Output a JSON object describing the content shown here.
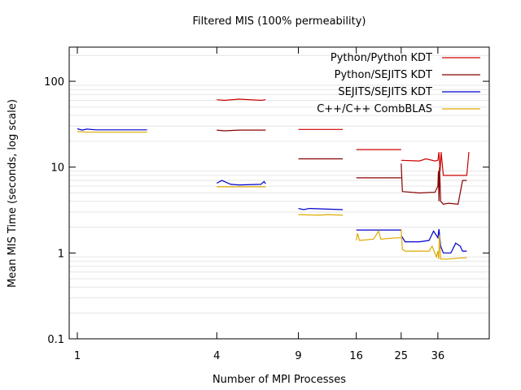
{
  "chart_data": {
    "type": "line",
    "title": "Filtered MIS (100% permeability)",
    "xlabel": "Number of MPI Processes",
    "ylabel": "Mean MIS Time (seconds, log scale)",
    "yscale": "log",
    "ylim": [
      0.1,
      250
    ],
    "x_ticks": [
      "1",
      "4",
      "9",
      "16",
      "25",
      "36"
    ],
    "y_ticks": [
      "0.1",
      "1",
      "10",
      "100"
    ],
    "grid": "horizontal minor",
    "legend_position": "top-right",
    "series": [
      {
        "name": "Python/Python KDT",
        "color": "#cc0000",
        "segments": [
          [
            [
              4,
              61
            ],
            [
              4.3,
              60
            ],
            [
              5,
              62
            ],
            [
              6.2,
              60
            ],
            [
              6.5,
              61
            ]
          ],
          [
            [
              9,
              27.5
            ],
            [
              14,
              27.5
            ]
          ],
          [
            [
              16,
              16
            ],
            [
              25,
              16
            ]
          ],
          [
            [
              25,
              12
            ],
            [
              30,
              11.8
            ],
            [
              32,
              12.5
            ],
            [
              35,
              11.8
            ],
            [
              36,
              12
            ],
            [
              36.4,
              15
            ],
            [
              36.8,
              9
            ],
            [
              37.2,
              15
            ],
            [
              38,
              8
            ],
            [
              42,
              8
            ],
            [
              48,
              8
            ],
            [
              49,
              15
            ]
          ]
        ]
      },
      {
        "name": "Python/SEJITS KDT",
        "color": "#880000",
        "segments": [
          [
            [
              4,
              27
            ],
            [
              4.3,
              26.5
            ],
            [
              5,
              27
            ],
            [
              6.5,
              27
            ]
          ],
          [
            [
              9,
              12.5
            ],
            [
              14,
              12.5
            ]
          ],
          [
            [
              16,
              7.5
            ],
            [
              25,
              7.5
            ]
          ],
          [
            [
              25,
              11
            ],
            [
              25.3,
              5.2
            ],
            [
              30,
              5
            ],
            [
              35,
              5.1
            ],
            [
              36,
              6
            ],
            [
              36.2,
              9
            ],
            [
              36.4,
              4
            ],
            [
              36.6,
              10
            ],
            [
              37,
              4
            ],
            [
              38,
              3.7
            ],
            [
              40,
              3.8
            ],
            [
              44,
              3.7
            ],
            [
              46,
              7
            ],
            [
              48,
              7
            ]
          ]
        ]
      },
      {
        "name": "SEJITS/SEJITS KDT",
        "color": "#0000cc",
        "segments": [
          [
            [
              1,
              28
            ],
            [
              1.05,
              27
            ],
            [
              1.1,
              27.7
            ],
            [
              1.2,
              27.2
            ],
            [
              2,
              27.2
            ]
          ],
          [
            [
              4,
              6.5
            ],
            [
              4.2,
              7
            ],
            [
              4.6,
              6.3
            ],
            [
              5,
              6.2
            ],
            [
              6.2,
              6.3
            ],
            [
              6.4,
              6.8
            ],
            [
              6.5,
              6.4
            ]
          ],
          [
            [
              9,
              3.3
            ],
            [
              9.5,
              3.2
            ],
            [
              10,
              3.3
            ],
            [
              14,
              3.2
            ]
          ],
          [
            [
              16,
              1.85
            ],
            [
              25,
              1.85
            ]
          ],
          [
            [
              25,
              1.6
            ],
            [
              26,
              1.35
            ],
            [
              30,
              1.35
            ],
            [
              33,
              1.4
            ],
            [
              34.5,
              1.8
            ],
            [
              36,
              1.5
            ],
            [
              36.4,
              1.9
            ],
            [
              37,
              1.2
            ],
            [
              38,
              1.0
            ],
            [
              41,
              1.0
            ],
            [
              43,
              1.3
            ],
            [
              45,
              1.2
            ],
            [
              46,
              1.05
            ],
            [
              48,
              1.05
            ]
          ]
        ]
      },
      {
        "name": "C++/C++ CombBLAS",
        "color": "#ddaa00",
        "segments": [
          [
            [
              1,
              26
            ],
            [
              1.1,
              25.5
            ],
            [
              2,
              25.5
            ]
          ],
          [
            [
              4,
              5.9
            ],
            [
              6.5,
              5.9
            ]
          ],
          [
            [
              9,
              2.8
            ],
            [
              11,
              2.75
            ],
            [
              12,
              2.8
            ],
            [
              14,
              2.75
            ]
          ],
          [
            [
              16,
              1.4
            ],
            [
              16.2,
              1.7
            ],
            [
              16.5,
              1.4
            ],
            [
              19,
              1.45
            ],
            [
              20,
              1.8
            ],
            [
              20.4,
              1.45
            ],
            [
              24,
              1.5
            ],
            [
              25,
              1.5
            ]
          ],
          [
            [
              25,
              1.9
            ],
            [
              25.3,
              1.1
            ],
            [
              26,
              1.05
            ],
            [
              33,
              1.05
            ],
            [
              34,
              1.2
            ],
            [
              35.5,
              0.9
            ],
            [
              36,
              1.05
            ],
            [
              36.3,
              0.85
            ],
            [
              36.6,
              1.6
            ],
            [
              37,
              0.85
            ],
            [
              40,
              0.85
            ],
            [
              44,
              0.87
            ],
            [
              48,
              0.88
            ]
          ]
        ]
      }
    ]
  }
}
